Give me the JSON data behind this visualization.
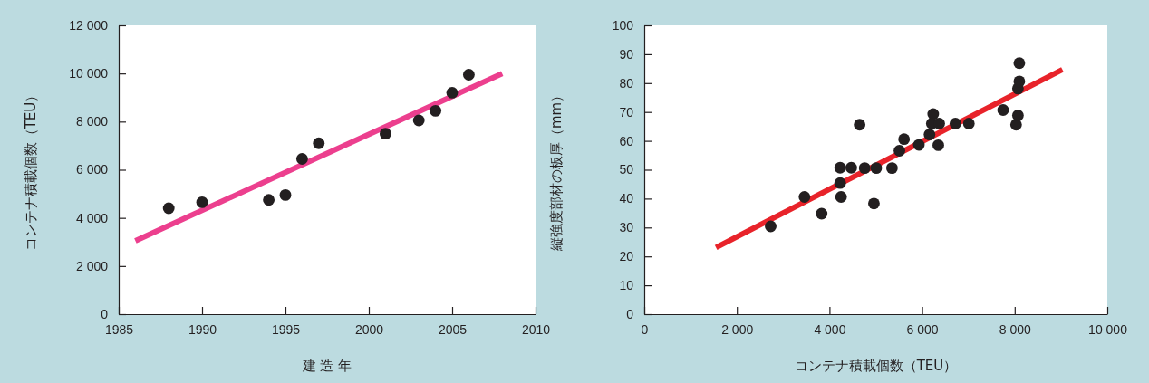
{
  "chart_data": [
    {
      "type": "scatter",
      "xlabel": "建 造 年",
      "ylabel": "コンテナ積載個数（TEU）",
      "xlim": [
        1985,
        2010
      ],
      "xticks": [
        1985,
        1990,
        1995,
        2000,
        2005,
        2010
      ],
      "ylim": [
        0,
        12000
      ],
      "yticks": [
        0,
        {
          "value": 2000,
          "label": "2 000"
        },
        {
          "value": 4000,
          "label": "4 000"
        },
        {
          "value": 6000,
          "label": "6 000"
        },
        {
          "value": 8000,
          "label": "8 000"
        },
        {
          "value": 10000,
          "label": "10 000"
        },
        {
          "value": 12000,
          "label": "12 000"
        }
      ],
      "series": [
        {
          "marker": "circle",
          "color": "#231f20",
          "x": [
            1988,
            1990,
            1994,
            1995,
            1996,
            1997,
            2001,
            2003,
            2004,
            2005,
            2006
          ],
          "values": [
            4400,
            4650,
            4750,
            4950,
            6450,
            7100,
            7500,
            8050,
            8450,
            9200,
            9950
          ]
        },
        {
          "type": "line",
          "color": "#ec3f8e",
          "x": [
            1986,
            2008
          ],
          "values": [
            3050,
            10000
          ]
        }
      ]
    },
    {
      "type": "scatter",
      "xlabel": "コンテナ積載個数（TEU）",
      "ylabel": "縦強度部材の板厚（mm）",
      "xlim": [
        0,
        10000
      ],
      "xticks": [
        0,
        {
          "value": 2000,
          "label": "2 000"
        },
        {
          "value": 4000,
          "label": "4 000"
        },
        {
          "value": 6000,
          "label": "6 000"
        },
        {
          "value": 8000,
          "label": "8 000"
        },
        {
          "value": 10000,
          "label": "10 000"
        }
      ],
      "ylim": [
        0,
        100
      ],
      "yticks": [
        0,
        10,
        20,
        30,
        40,
        50,
        60,
        70,
        80,
        90,
        100
      ],
      "series": [
        {
          "marker": "circle",
          "color": "#231f20",
          "x": [
            2730,
            3460,
            3830,
            4230,
            4470,
            4230,
            4250,
            4650,
            4760,
            4960,
            5010,
            5350,
            5510,
            5610,
            5930,
            6160,
            6240,
            6210,
            6370,
            6350,
            6720,
            7010,
            7750,
            8030,
            8070,
            8070,
            8100,
            8100
          ],
          "values": [
            30.4,
            40.6,
            34.8,
            50.7,
            50.7,
            45.4,
            40.6,
            65.6,
            50.6,
            38.3,
            50.6,
            50.6,
            56.6,
            60.6,
            58.6,
            62.2,
            69.3,
            66.0,
            66.0,
            58.5,
            66.0,
            66.0,
            70.7,
            65.6,
            68.8,
            78.1,
            80.6,
            86.9
          ]
        },
        {
          "type": "line",
          "color": "#e8232a",
          "x": [
            1550,
            9030
          ],
          "values": [
            23.1,
            84.7
          ]
        }
      ]
    }
  ]
}
